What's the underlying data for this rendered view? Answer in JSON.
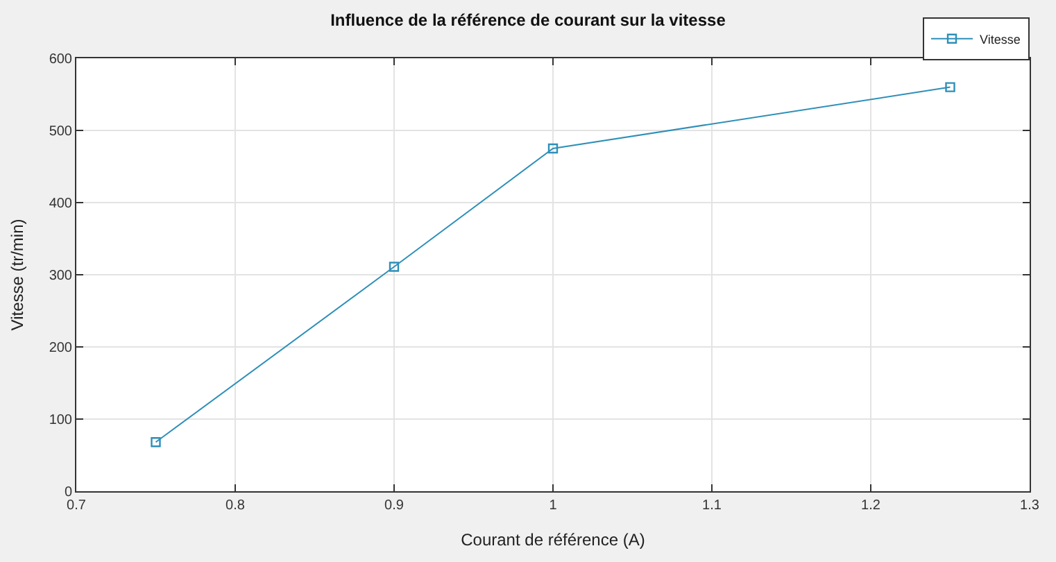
{
  "chart_data": {
    "type": "line",
    "title": "Influence de la référence de courant sur la vitesse",
    "xlabel": "Courant de référence (A)",
    "ylabel": "Vitesse (tr/min)",
    "x": [
      0.75,
      0.9,
      1.0,
      1.25
    ],
    "series": [
      {
        "name": "Vitesse",
        "color": "#2e8fb8",
        "values": [
          68,
          311,
          475,
          560
        ]
      }
    ],
    "xlim": [
      0.7,
      1.3
    ],
    "xticks": [
      0.7,
      0.8,
      0.9,
      1,
      1.1,
      1.2,
      1.3
    ],
    "ylim": [
      0,
      600
    ],
    "yticks": [
      0,
      100,
      200,
      300,
      400,
      500,
      600
    ],
    "grid": true,
    "legend": "top right",
    "marker": "square",
    "line_style": "solid"
  }
}
